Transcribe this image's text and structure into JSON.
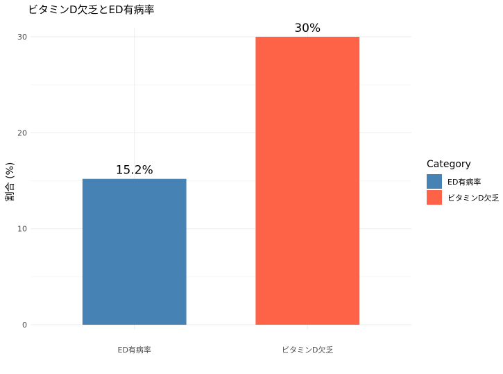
{
  "chart_data": {
    "type": "bar",
    "title": "ビタミンD欠乏とED有病率",
    "xlabel": "",
    "ylabel": "割合 (%)",
    "categories": [
      "ED有病率",
      "ビタミンD欠乏"
    ],
    "values": [
      15.2,
      30
    ],
    "data_labels": [
      "15.2%",
      "30%"
    ],
    "colors": [
      "#4682B4",
      "#FF6347"
    ],
    "ylim": [
      0,
      30
    ],
    "yticks": [
      0,
      10,
      20,
      30
    ],
    "grid": true,
    "legend": {
      "title": "Category",
      "placement": "right",
      "items": [
        "ED有病率",
        "ビタミンD欠乏"
      ]
    }
  }
}
